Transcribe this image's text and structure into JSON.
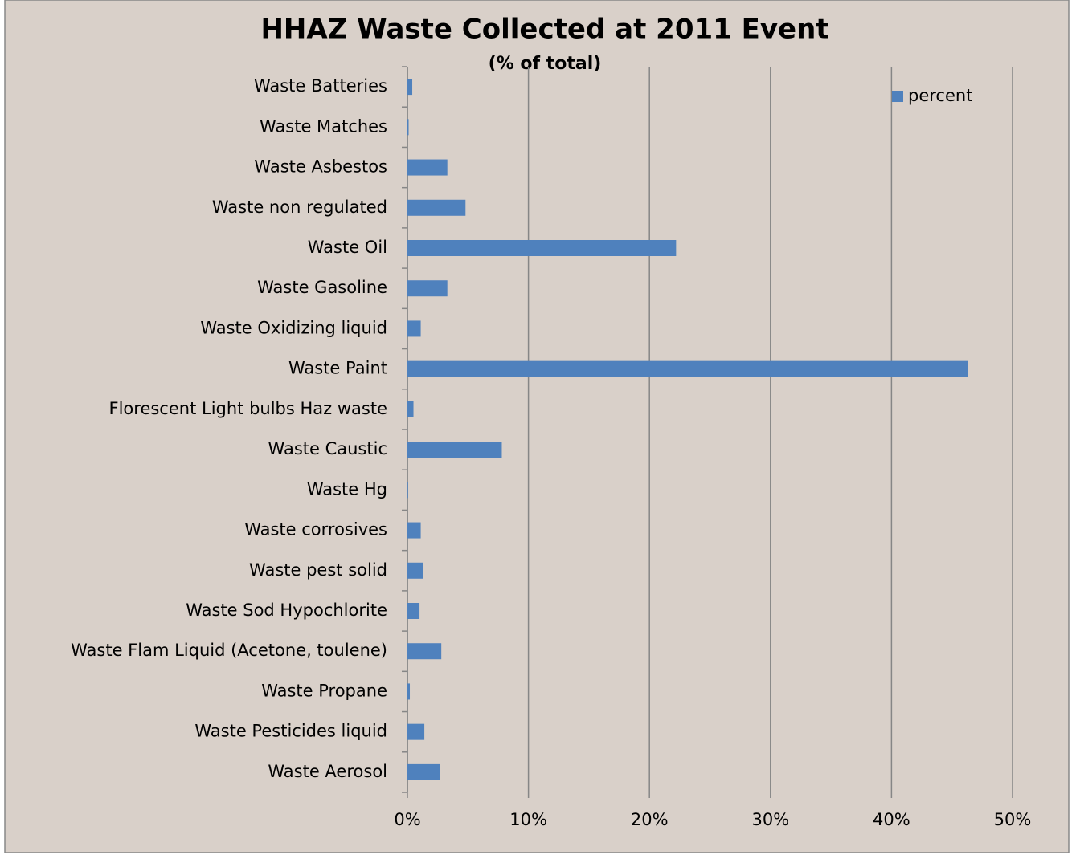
{
  "chart_data": {
    "type": "bar",
    "orientation": "horizontal",
    "title": "HHAZ Waste Collected at 2011 Event",
    "subtitle": "(% of total)",
    "categories": [
      "Waste Batteries",
      "Waste Matches",
      "Waste Asbestos",
      "Waste non regulated",
      "Waste Oil",
      "Waste Gasoline",
      "Waste Oxidizing liquid",
      "Waste Paint",
      "Florescent Light bulbs Haz waste",
      "Waste Caustic",
      "Waste Hg",
      "Waste corrosives",
      "Waste pest solid",
      "Waste Sod Hypochlorite",
      "Waste Flam Liquid (Acetone, toulene)",
      "Waste Propane",
      "Waste Pesticides liquid",
      "Waste Aerosol"
    ],
    "series": [
      {
        "name": "percent",
        "color": "#4f81bd",
        "values": [
          0.4,
          0.1,
          3.3,
          4.8,
          22.2,
          3.3,
          1.1,
          46.3,
          0.5,
          7.8,
          0.05,
          1.1,
          1.3,
          1.0,
          2.8,
          0.2,
          1.4,
          2.7
        ]
      }
    ],
    "xlim": [
      0,
      50
    ],
    "xticks": [
      {
        "value": 0,
        "label": "0%"
      },
      {
        "value": 10,
        "label": "10%"
      },
      {
        "value": 20,
        "label": "20%"
      },
      {
        "value": 30,
        "label": "30%"
      },
      {
        "value": 40,
        "label": "40%"
      },
      {
        "value": 50,
        "label": "50%"
      }
    ],
    "grid": true,
    "legend": "top-right"
  }
}
